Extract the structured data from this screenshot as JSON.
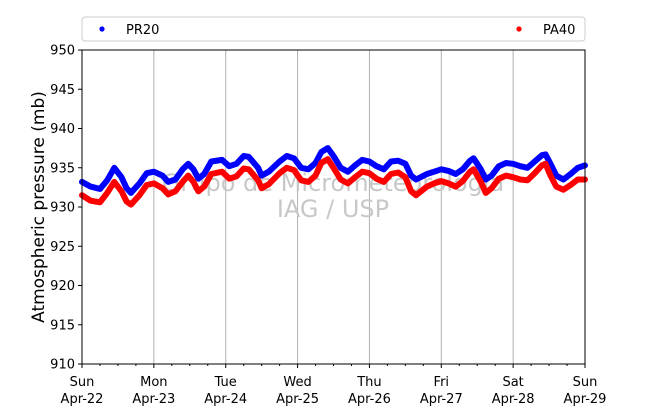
{
  "chart_data": {
    "type": "line",
    "ylabel": "Atmospheric pressure (mb)",
    "xlabel": "",
    "ylim": [
      910,
      950
    ],
    "yticks": [
      910,
      915,
      920,
      925,
      930,
      935,
      940,
      945,
      950
    ],
    "xticks": [
      {
        "day": "Sun",
        "date": "Apr-22"
      },
      {
        "day": "Mon",
        "date": "Apr-23"
      },
      {
        "day": "Tue",
        "date": "Apr-24"
      },
      {
        "day": "Wed",
        "date": "Apr-25"
      },
      {
        "day": "Thu",
        "date": "Apr-26"
      },
      {
        "day": "Fri",
        "date": "Apr-27"
      },
      {
        "day": "Sat",
        "date": "Apr-28"
      },
      {
        "day": "Sun",
        "date": "Apr-29"
      }
    ],
    "grid": "vertical",
    "legend_position": "top",
    "watermark": [
      "Grupo de Micrometeorologia",
      "IAG / USP"
    ],
    "series": [
      {
        "name": "PR20",
        "color": "#0000ff",
        "points": [
          [
            0,
            933.2
          ],
          [
            0.12,
            932.6
          ],
          [
            0.25,
            932.3
          ],
          [
            0.35,
            933.4
          ],
          [
            0.45,
            935.0
          ],
          [
            0.55,
            933.8
          ],
          [
            0.62,
            932.4
          ],
          [
            0.68,
            931.8
          ],
          [
            0.8,
            933.0
          ],
          [
            0.9,
            934.3
          ],
          [
            1.0,
            934.5
          ],
          [
            1.12,
            934.0
          ],
          [
            1.2,
            933.2
          ],
          [
            1.3,
            933.5
          ],
          [
            1.4,
            934.8
          ],
          [
            1.48,
            935.5
          ],
          [
            1.55,
            934.8
          ],
          [
            1.62,
            933.6
          ],
          [
            1.7,
            934.2
          ],
          [
            1.8,
            935.8
          ],
          [
            1.95,
            936.0
          ],
          [
            2.05,
            935.2
          ],
          [
            2.15,
            935.5
          ],
          [
            2.25,
            936.5
          ],
          [
            2.32,
            936.4
          ],
          [
            2.45,
            935.0
          ],
          [
            2.5,
            934.0
          ],
          [
            2.6,
            934.5
          ],
          [
            2.75,
            935.8
          ],
          [
            2.85,
            936.5
          ],
          [
            2.95,
            936.2
          ],
          [
            3.05,
            935.0
          ],
          [
            3.15,
            934.8
          ],
          [
            3.25,
            935.6
          ],
          [
            3.33,
            937.0
          ],
          [
            3.42,
            937.5
          ],
          [
            3.5,
            936.5
          ],
          [
            3.6,
            935.0
          ],
          [
            3.7,
            934.5
          ],
          [
            3.8,
            935.3
          ],
          [
            3.9,
            936.0
          ],
          [
            4.0,
            935.8
          ],
          [
            4.1,
            935.2
          ],
          [
            4.2,
            934.8
          ],
          [
            4.3,
            935.8
          ],
          [
            4.4,
            935.9
          ],
          [
            4.5,
            935.5
          ],
          [
            4.58,
            934.0
          ],
          [
            4.65,
            933.5
          ],
          [
            4.8,
            934.2
          ],
          [
            4.9,
            934.5
          ],
          [
            5.0,
            934.8
          ],
          [
            5.1,
            934.6
          ],
          [
            5.2,
            934.2
          ],
          [
            5.3,
            934.8
          ],
          [
            5.4,
            935.9
          ],
          [
            5.45,
            936.2
          ],
          [
            5.55,
            934.8
          ],
          [
            5.62,
            933.5
          ],
          [
            5.7,
            934.0
          ],
          [
            5.8,
            935.2
          ],
          [
            5.9,
            935.6
          ],
          [
            6.0,
            935.5
          ],
          [
            6.1,
            935.2
          ],
          [
            6.2,
            935.0
          ],
          [
            6.3,
            935.8
          ],
          [
            6.4,
            936.6
          ],
          [
            6.45,
            936.7
          ],
          [
            6.52,
            935.5
          ],
          [
            6.6,
            934.0
          ],
          [
            6.7,
            933.5
          ],
          [
            6.8,
            934.2
          ],
          [
            6.9,
            935.0
          ],
          [
            7.0,
            935.3
          ]
        ]
      },
      {
        "name": "PA40",
        "color": "#ff0000",
        "points": [
          [
            0,
            931.5
          ],
          [
            0.12,
            930.8
          ],
          [
            0.25,
            930.6
          ],
          [
            0.35,
            931.8
          ],
          [
            0.45,
            933.2
          ],
          [
            0.55,
            932.0
          ],
          [
            0.62,
            930.7
          ],
          [
            0.68,
            930.3
          ],
          [
            0.8,
            931.5
          ],
          [
            0.9,
            932.8
          ],
          [
            1.0,
            933.0
          ],
          [
            1.12,
            932.4
          ],
          [
            1.2,
            931.6
          ],
          [
            1.3,
            932.0
          ],
          [
            1.4,
            933.2
          ],
          [
            1.48,
            934.0
          ],
          [
            1.55,
            933.2
          ],
          [
            1.62,
            932.0
          ],
          [
            1.7,
            932.6
          ],
          [
            1.8,
            934.2
          ],
          [
            1.95,
            934.5
          ],
          [
            2.05,
            933.6
          ],
          [
            2.15,
            933.9
          ],
          [
            2.25,
            934.9
          ],
          [
            2.32,
            934.8
          ],
          [
            2.45,
            933.4
          ],
          [
            2.5,
            932.4
          ],
          [
            2.6,
            932.9
          ],
          [
            2.75,
            934.3
          ],
          [
            2.85,
            935.0
          ],
          [
            2.95,
            934.7
          ],
          [
            3.05,
            933.4
          ],
          [
            3.15,
            933.2
          ],
          [
            3.25,
            934.0
          ],
          [
            3.33,
            935.6
          ],
          [
            3.42,
            936.1
          ],
          [
            3.5,
            935.0
          ],
          [
            3.6,
            933.5
          ],
          [
            3.7,
            933.0
          ],
          [
            3.8,
            933.8
          ],
          [
            3.9,
            934.5
          ],
          [
            4.0,
            934.3
          ],
          [
            4.1,
            933.6
          ],
          [
            4.2,
            933.2
          ],
          [
            4.3,
            934.2
          ],
          [
            4.4,
            934.4
          ],
          [
            4.5,
            933.8
          ],
          [
            4.58,
            932.0
          ],
          [
            4.65,
            931.5
          ],
          [
            4.8,
            932.6
          ],
          [
            4.9,
            933.0
          ],
          [
            5.0,
            933.3
          ],
          [
            5.1,
            933.0
          ],
          [
            5.2,
            932.6
          ],
          [
            5.3,
            933.3
          ],
          [
            5.4,
            934.5
          ],
          [
            5.45,
            934.8
          ],
          [
            5.55,
            933.2
          ],
          [
            5.62,
            931.8
          ],
          [
            5.7,
            932.4
          ],
          [
            5.8,
            933.6
          ],
          [
            5.9,
            934.0
          ],
          [
            6.0,
            933.8
          ],
          [
            6.1,
            933.5
          ],
          [
            6.2,
            933.4
          ],
          [
            6.3,
            934.3
          ],
          [
            6.4,
            935.3
          ],
          [
            6.45,
            935.5
          ],
          [
            6.52,
            934.0
          ],
          [
            6.6,
            932.6
          ],
          [
            6.7,
            932.2
          ],
          [
            6.8,
            932.8
          ],
          [
            6.9,
            933.5
          ],
          [
            7.0,
            933.5
          ]
        ]
      }
    ]
  }
}
